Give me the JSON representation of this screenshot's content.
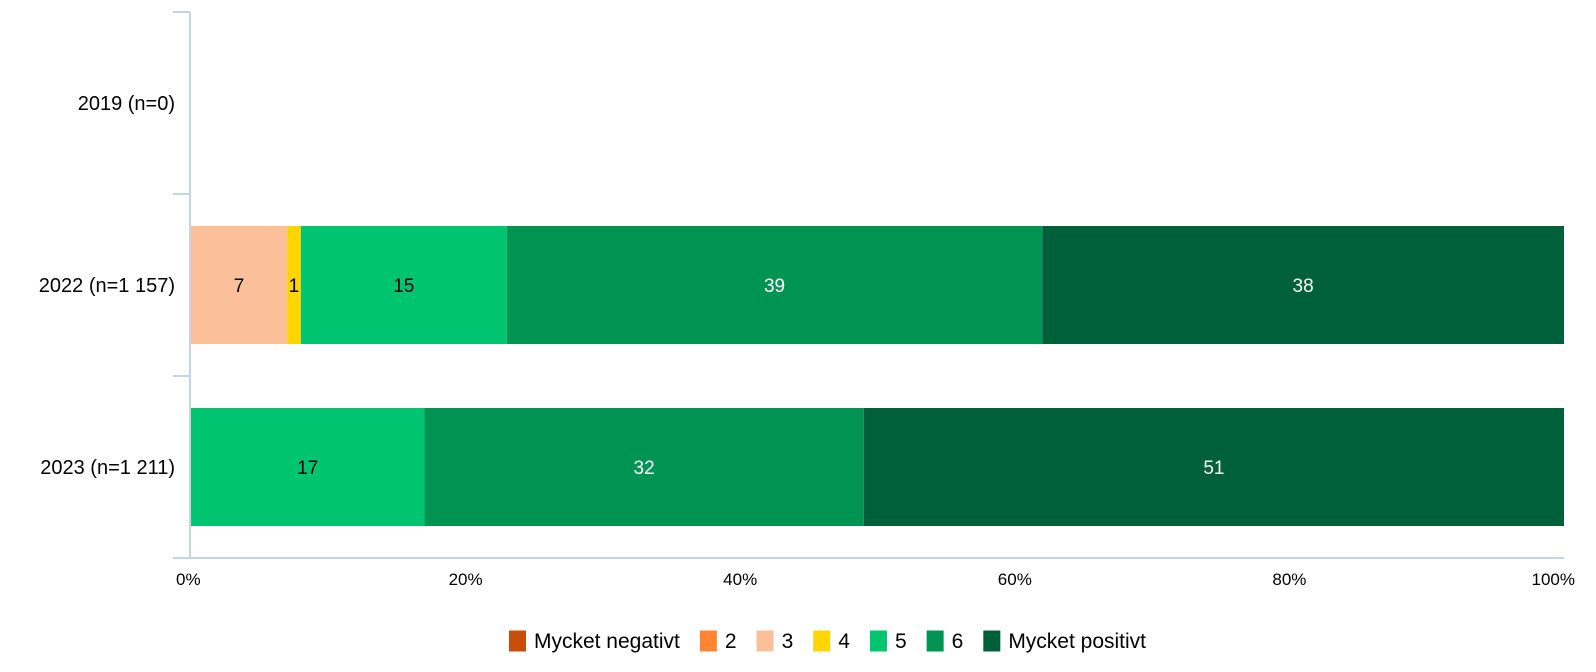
{
  "chart_data": {
    "type": "bar",
    "orientation": "horizontal",
    "stacked": true,
    "percent_scale": true,
    "categories": [
      "2019 (n=0)",
      "2022 (n=1 157)",
      "2023 (n=1 211)"
    ],
    "series": [
      {
        "name": "Mycket negativt",
        "color": "#c94d0b",
        "values": [
          0,
          0,
          0
        ]
      },
      {
        "name": "2",
        "color": "#ff8533",
        "values": [
          0,
          0,
          0
        ]
      },
      {
        "name": "3",
        "color": "#fbbf99",
        "values": [
          0,
          7,
          0
        ]
      },
      {
        "name": "4",
        "color": "#ffd500",
        "values": [
          0,
          1,
          0
        ]
      },
      {
        "name": "5",
        "color": "#00c46f",
        "values": [
          0,
          15,
          17
        ]
      },
      {
        "name": "6",
        "color": "#009453",
        "values": [
          0,
          39,
          32
        ]
      },
      {
        "name": "Mycket positivt",
        "color": "#00603a",
        "values": [
          0,
          38,
          51
        ]
      }
    ],
    "xlim": [
      0,
      100
    ],
    "x_ticks": [
      "0%",
      "20%",
      "40%",
      "60%",
      "80%",
      "100%"
    ],
    "xlabel": "",
    "ylabel": "",
    "grid": false,
    "legend_position": "bottom",
    "colors": {
      "axis": "#c5d3e3",
      "label_dark": "#000000",
      "label_light": "#ffffff"
    }
  }
}
